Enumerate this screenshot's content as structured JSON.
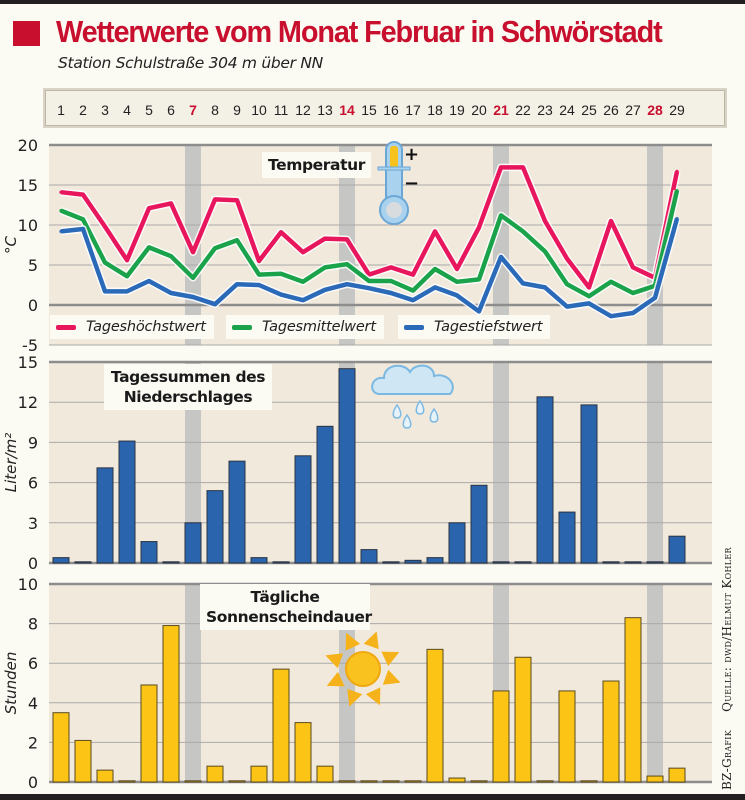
{
  "header": {
    "title": "Wetterwerte vom Monat Februar in Schwörstadt",
    "subtitle": "Station Schulstraße 304 m über NN"
  },
  "days": [
    "1",
    "2",
    "3",
    "4",
    "5",
    "6",
    "7",
    "8",
    "9",
    "10",
    "11",
    "12",
    "13",
    "14",
    "15",
    "16",
    "17",
    "18",
    "19",
    "20",
    "21",
    "22",
    "23",
    "24",
    "25",
    "26",
    "27",
    "28",
    "29"
  ],
  "highlighted_days": [
    "7",
    "14",
    "21",
    "28"
  ],
  "colors": {
    "title": "#c8102e",
    "max": "#e8175d",
    "mean": "#1aa34a",
    "min": "#2a6ab8",
    "precip": "#2a64ad",
    "sun": "#fcc515",
    "panel": "#f1e9dc",
    "weekend_band": "#c6c6c4"
  },
  "icons": {
    "temperature": "thermometer-icon",
    "precipitation": "rain-cloud-icon",
    "sunshine": "sun-icon"
  },
  "credit": {
    "left": "BZ-Grafik",
    "right": "Quelle: dwd/Helmut Kohler"
  },
  "chart_data": [
    {
      "type": "line",
      "title": "Temperatur",
      "ylabel": "°C",
      "ylim": [
        -5,
        20
      ],
      "yticks": [
        "-5",
        "0",
        "5",
        "10",
        "15",
        "20"
      ],
      "grid": true,
      "legend_placement": "bottom",
      "series": [
        {
          "name": "Tageshöchstwert",
          "values": [
            14.1,
            13.8,
            9.8,
            5.6,
            12.1,
            12.7,
            6.6,
            13.2,
            13.1,
            5.5,
            9.1,
            6.6,
            8.3,
            8.2,
            3.8,
            4.7,
            3.8,
            9.2,
            4.5,
            9.7,
            17.2,
            17.2,
            10.5,
            5.8,
            2.2,
            10.5,
            4.7,
            3.4,
            16.7
          ]
        },
        {
          "name": "Tagesmittelwert",
          "values": [
            11.8,
            10.7,
            5.3,
            3.6,
            7.2,
            6.1,
            3.4,
            7.1,
            8.1,
            3.8,
            3.9,
            2.9,
            4.7,
            5.1,
            3.0,
            3.0,
            1.8,
            4.5,
            2.9,
            3.2,
            11.2,
            9.2,
            6.7,
            2.6,
            1.1,
            2.9,
            1.5,
            2.4,
            14.3
          ]
        },
        {
          "name": "Tagestiefstwert",
          "values": [
            9.2,
            9.5,
            1.7,
            1.7,
            3.0,
            1.5,
            1.0,
            0.1,
            2.6,
            2.5,
            1.3,
            0.6,
            1.9,
            2.6,
            2.1,
            1.5,
            0.6,
            2.2,
            1.2,
            -0.8,
            6.0,
            2.7,
            2.2,
            -0.2,
            0.2,
            -1.4,
            -1.0,
            0.9,
            10.8
          ]
        }
      ]
    },
    {
      "type": "bar",
      "title": "Tagessummen des Niederschlages",
      "ylabel": "Liter/m²",
      "ylim": [
        0,
        15
      ],
      "yticks": [
        "0",
        "3",
        "6",
        "9",
        "12",
        "15"
      ],
      "grid": true,
      "values": [
        0.4,
        0,
        7.1,
        9.1,
        1.6,
        0,
        3.0,
        5.4,
        7.6,
        0.4,
        0,
        8.0,
        10.2,
        14.5,
        1.0,
        0,
        0.2,
        0.4,
        3.0,
        5.8,
        0,
        0,
        12.4,
        3.8,
        11.8,
        0,
        0,
        0,
        2.0
      ]
    },
    {
      "type": "bar",
      "title": "Tägliche Sonnenscheindauer",
      "ylabel": "Stunden",
      "ylim": [
        0,
        10
      ],
      "yticks": [
        "0",
        "2",
        "4",
        "6",
        "8",
        "10"
      ],
      "grid": true,
      "values": [
        3.5,
        2.1,
        0.6,
        0,
        4.9,
        7.9,
        0,
        0.8,
        0,
        0.8,
        5.7,
        3.0,
        0.8,
        0,
        0,
        0,
        0,
        6.7,
        0.2,
        0,
        4.6,
        6.3,
        0,
        4.6,
        0,
        5.1,
        8.3,
        0.3,
        0.7
      ]
    }
  ]
}
